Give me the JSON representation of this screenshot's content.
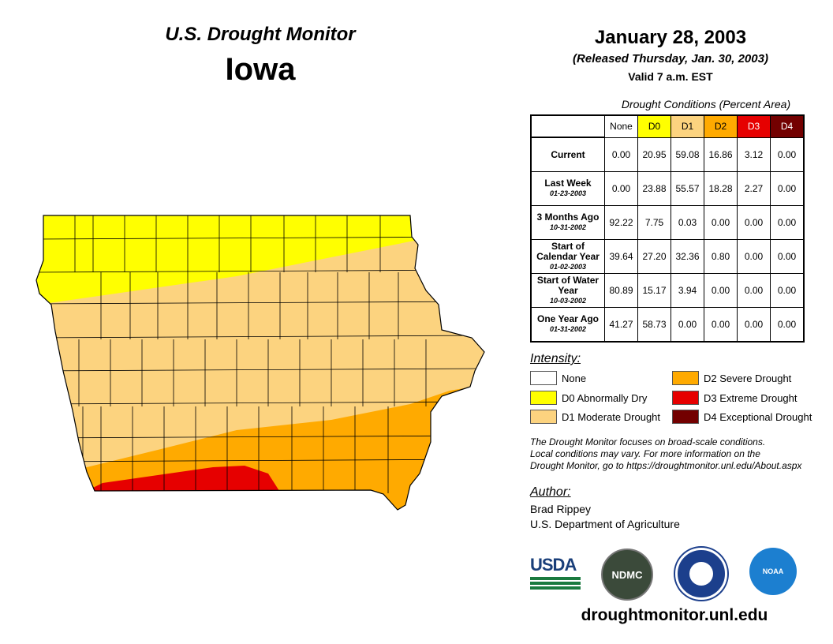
{
  "header": {
    "title": "U.S. Drought Monitor",
    "state": "Iowa",
    "date": "January 28, 2003",
    "released": "(Released Thursday, Jan. 30, 2003)",
    "valid": "Valid 7 a.m. EST"
  },
  "table": {
    "title": "Drought Conditions (Percent Area)",
    "columns": [
      "None",
      "D0",
      "D1",
      "D2",
      "D3",
      "D4"
    ],
    "rows": [
      {
        "label": "Current",
        "date": "",
        "values": [
          "0.00",
          "20.95",
          "59.08",
          "16.86",
          "3.12",
          "0.00"
        ]
      },
      {
        "label": "Last Week",
        "date": "01-23-2003",
        "values": [
          "0.00",
          "23.88",
          "55.57",
          "18.28",
          "2.27",
          "0.00"
        ]
      },
      {
        "label": "3 Months Ago",
        "date": "10-31-2002",
        "values": [
          "92.22",
          "7.75",
          "0.03",
          "0.00",
          "0.00",
          "0.00"
        ]
      },
      {
        "label": "Start of Calendar Year",
        "date": "01-02-2003",
        "values": [
          "39.64",
          "27.20",
          "32.36",
          "0.80",
          "0.00",
          "0.00"
        ]
      },
      {
        "label": "Start of Water Year",
        "date": "10-03-2002",
        "values": [
          "80.89",
          "15.17",
          "3.94",
          "0.00",
          "0.00",
          "0.00"
        ]
      },
      {
        "label": "One Year Ago",
        "date": "01-31-2002",
        "values": [
          "41.27",
          "58.73",
          "0.00",
          "0.00",
          "0.00",
          "0.00"
        ]
      }
    ]
  },
  "legend": {
    "title": "Intensity:",
    "items": [
      {
        "label": "None",
        "color": "#ffffff"
      },
      {
        "label": "D0 Abnormally Dry",
        "color": "#ffff00"
      },
      {
        "label": "D1 Moderate Drought",
        "color": "#fcd37f"
      },
      {
        "label": "D2 Severe Drought",
        "color": "#ffaa00"
      },
      {
        "label": "D3 Extreme Drought",
        "color": "#e60000"
      },
      {
        "label": "D4 Exceptional Drought",
        "color": "#730000"
      }
    ]
  },
  "note": [
    "The Drought Monitor focuses on broad-scale conditions.",
    "Local conditions may vary. For more information on the",
    "Drought Monitor, go to https://droughtmonitor.unl.edu/About.aspx"
  ],
  "author": {
    "title": "Author:",
    "name": "Brad Rippey",
    "org": "U.S. Department of Agriculture"
  },
  "logos": {
    "usda": "USDA",
    "ndmc": "NDMC",
    "noaa": "NOAA"
  },
  "url": "droughtmonitor.unl.edu"
}
